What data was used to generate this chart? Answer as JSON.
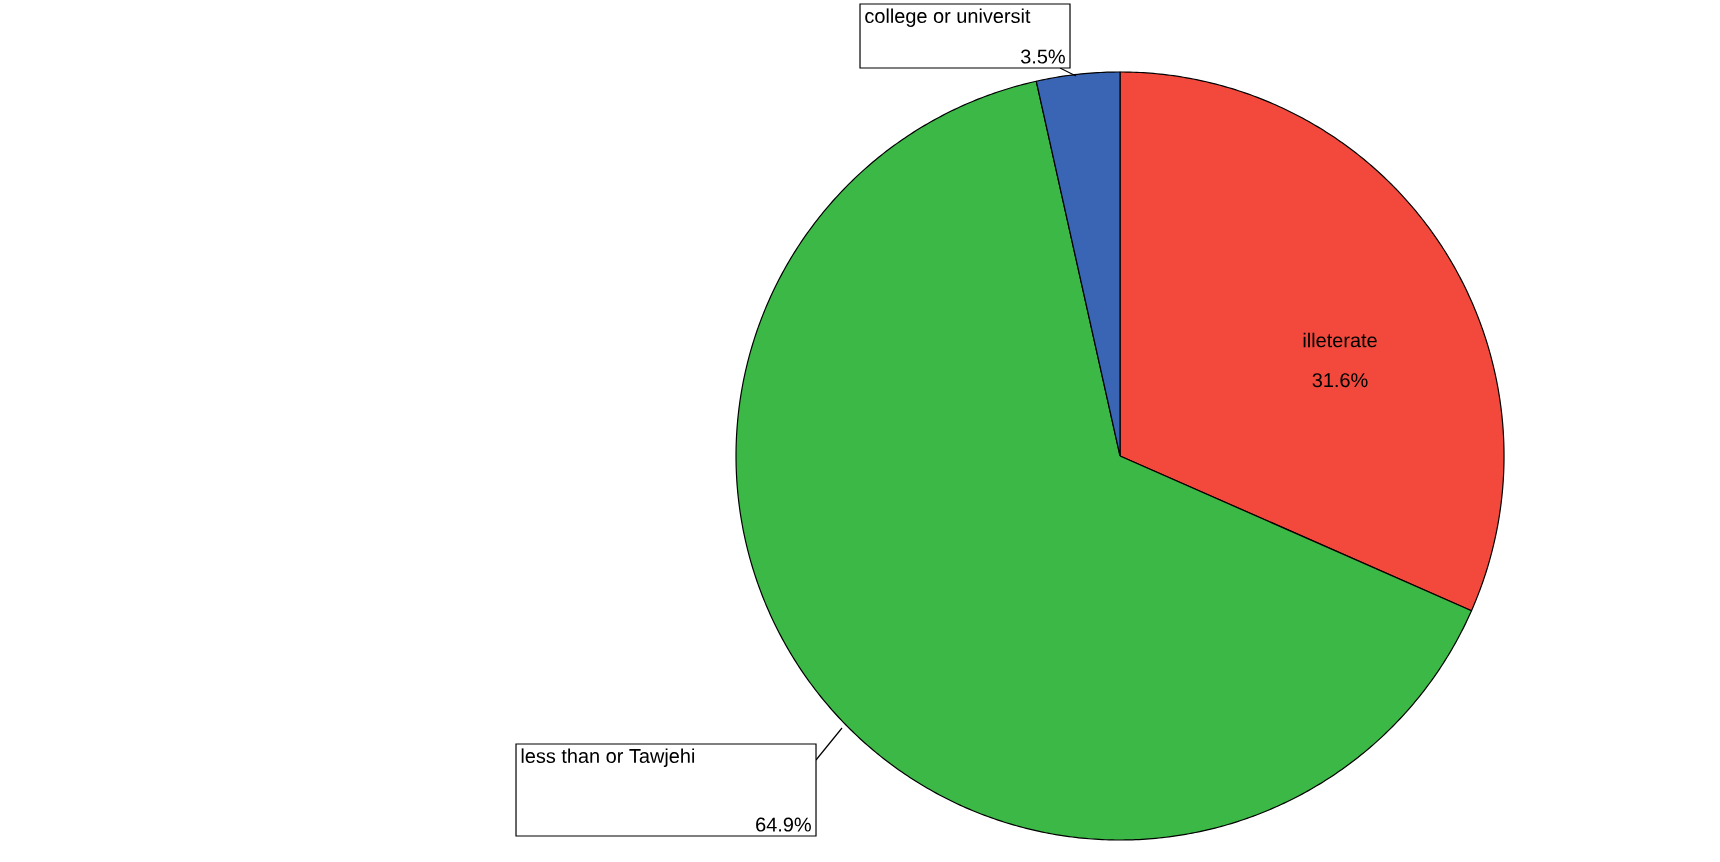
{
  "chart_data": {
    "type": "pie",
    "categories": [
      "illeterate",
      "less than or Tawjehi",
      "college or universit"
    ],
    "values": [
      31.6,
      64.9,
      3.5
    ],
    "value_labels": [
      "31.6%",
      "64.9%",
      "3.5%"
    ],
    "colors": [
      "#f2493c",
      "#3cb846",
      "#3a64b4"
    ]
  }
}
